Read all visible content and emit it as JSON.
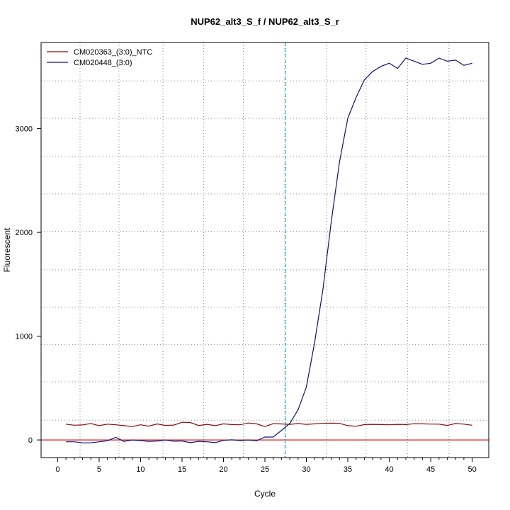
{
  "chart_data": {
    "type": "line",
    "title": "NUP62_alt3_S_f / NUP62_alt3_S_r",
    "xlabel": "Cycle",
    "ylabel": "Fluorescent",
    "xlim": [
      -2,
      52
    ],
    "ylim": [
      -170,
      3830
    ],
    "x_ticks": [
      0,
      5,
      10,
      15,
      20,
      25,
      30,
      35,
      40,
      45,
      50
    ],
    "x_minor_ticks": [
      1,
      2,
      3,
      4,
      6,
      7,
      8,
      9,
      11,
      12,
      13,
      14,
      16,
      17,
      18,
      19,
      21,
      22,
      23,
      24,
      26,
      27,
      28,
      29,
      31,
      32,
      33,
      34,
      36,
      37,
      38,
      39,
      41,
      42,
      43,
      44,
      46,
      47,
      48,
      49
    ],
    "y_ticks": [
      0,
      1000,
      2000,
      3000
    ],
    "grid": true,
    "grid_x": [
      2.7,
      7.4,
      12.7,
      17.6,
      22.4,
      27.4,
      32.4,
      37.2,
      42.2,
      47.2
    ],
    "grid_y": [
      190,
      560,
      920,
      1280,
      1640,
      2010,
      2370,
      2730,
      3100,
      3460
    ],
    "threshold_x": 27.5,
    "baseline_y": 0,
    "legend_position": "top-left",
    "colors": {
      "threshold": "#1fd0d8",
      "baseline": "#d42020",
      "grid": "#8a8a8a",
      "axis": "#000000"
    },
    "x": [
      1,
      2,
      3,
      4,
      5,
      6,
      7,
      8,
      9,
      10,
      11,
      12,
      13,
      14,
      15,
      16,
      17,
      18,
      19,
      20,
      21,
      22,
      23,
      24,
      25,
      26,
      27,
      28,
      29,
      30,
      31,
      32,
      33,
      34,
      35,
      36,
      37,
      38,
      39,
      40,
      41,
      42,
      43,
      44,
      45,
      46,
      47,
      48,
      49,
      50
    ],
    "series": [
      {
        "name": "CM020363_(3:0)_NTC",
        "color": "#8b0a0a",
        "values": [
          152,
          142,
          145,
          158,
          138,
          152,
          146,
          138,
          129,
          146,
          133,
          154,
          140,
          143,
          170,
          168,
          139,
          150,
          138,
          155,
          148,
          146,
          163,
          155,
          128,
          157,
          154,
          150,
          158,
          150,
          155,
          160,
          162,
          160,
          138,
          132,
          148,
          150,
          148,
          146,
          150,
          148,
          156,
          155,
          153,
          152,
          140,
          158,
          152,
          142
        ]
      },
      {
        "name": "CM020448_(3:0)",
        "color": "#10107a",
        "values": [
          -18,
          -18,
          -28,
          -28,
          -18,
          -8,
          25,
          -14,
          0,
          -6,
          -14,
          -10,
          0,
          -12,
          -10,
          -26,
          -14,
          -18,
          -26,
          -4,
          2,
          -6,
          0,
          -8,
          28,
          28,
          92,
          160,
          290,
          510,
          940,
          1450,
          2100,
          2680,
          3100,
          3300,
          3470,
          3550,
          3600,
          3630,
          3580,
          3680,
          3650,
          3620,
          3630,
          3680,
          3650,
          3660,
          3610,
          3630
        ]
      }
    ]
  }
}
